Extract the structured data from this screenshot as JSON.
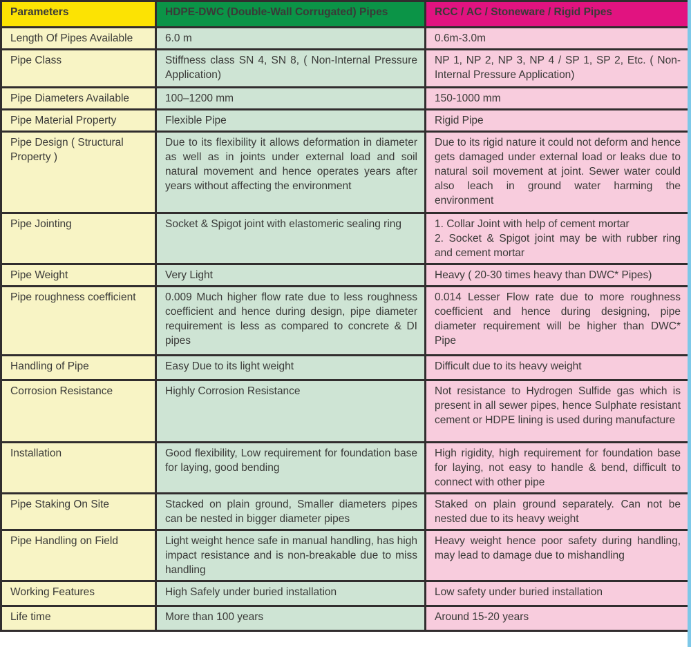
{
  "table": {
    "headers": [
      {
        "label": "Parameters"
      },
      {
        "label": "HDPE-DWC  (Double-Wall Corrugated) Pipes"
      },
      {
        "label": "RCC / AC / Stoneware / Rigid Pipes"
      }
    ],
    "rows": [
      {
        "param": "Length Of Pipes Available",
        "hdpe": "6.0 m",
        "rcc": "0.6m-3.0m"
      },
      {
        "param": "Pipe Class",
        "hdpe": "Stiffness class SN 4, SN 8, ( Non-Internal Pressure Application)",
        "rcc": "NP 1, NP 2, NP 3, NP 4 / SP 1, SP 2, Etc. ( Non-Internal Pressure Application)"
      },
      {
        "param": "Pipe Diameters Available",
        "hdpe": "100–1200 mm",
        "rcc": "150-1000 mm"
      },
      {
        "param": "Pipe Material Property",
        "hdpe": "Flexible Pipe",
        "rcc": "Rigid Pipe"
      },
      {
        "param": "Pipe Design ( Structural Property )",
        "hdpe": "Due to its flexibility it allows deformation in diameter as well as in joints under external load and soil natural movement and hence operates years after years without affecting the environment",
        "rcc": "Due to its rigid nature it could not deform and hence gets damaged under external load or leaks due to natural soil movement at joint. Sewer water could also leach in ground water harming the environment"
      },
      {
        "param": "Pipe Jointing",
        "hdpe": "Socket & Spigot joint with elastomeric sealing ring",
        "rcc": "1. Collar Joint with help of cement mortar\n2. Socket & Spigot joint may be with rubber ring and cement mortar"
      },
      {
        "param": "Pipe Weight",
        "hdpe": "Very Light",
        "rcc": "Heavy ( 20-30  times heavy than DWC* Pipes)"
      },
      {
        "param": "Pipe roughness coefficient",
        "hdpe": "0.009 Much higher flow rate due to less roughness coefficient and hence during design, pipe diameter requirement is less as compared to concrete & DI pipes",
        "rcc": "0.014 Lesser Flow rate due to more roughness coefficient and hence during designing, pipe diameter requirement will be higher than DWC* Pipe"
      },
      {
        "param": "Handling of Pipe",
        "hdpe": "Easy Due to its light weight",
        "rcc": "Difficult due to its heavy weight"
      },
      {
        "param": "Corrosion Resistance",
        "hdpe": "Highly Corrosion Resistance",
        "rcc": "Not resistance to Hydrogen Sulfide gas which is present in all sewer pipes, hence Sulphate resistant cement or HDPE lining is used during manufacture"
      },
      {
        "param": "Installation",
        "hdpe": "Good flexibility, Low requirement for foundation base for laying, good bending",
        "rcc": "High rigidity, high requirement for foundation base for laying, not easy to handle & bend, difficult to connect with other pipe"
      },
      {
        "param": "Pipe Staking On Site",
        "hdpe": "Stacked on plain ground, Smaller diameters pipes can be nested in bigger diameter pipes",
        "rcc": "Staked on plain ground separately. Can not be nested due to its heavy weight"
      },
      {
        "param": "Pipe Handling on Field",
        "hdpe": "Light weight hence safe in manual handling, has high impact resistance and is non-breakable due to miss handling",
        "rcc": "Heavy weight hence poor safety during handling, may lead to damage due to mishandling"
      },
      {
        "param": "Working Features",
        "hdpe": "High Safely under buried installation",
        "rcc": "Low safety under buried installation"
      },
      {
        "param": "Life time",
        "hdpe": "More than 100 years",
        "rcc": "Around 15-20 years"
      }
    ]
  },
  "colors": {
    "header_yellow": "#FCE303",
    "header_green": "#0B9447",
    "header_pink": "#E11380",
    "body_yellow": "#F8F4C5",
    "body_green": "#CEE4D4",
    "body_pink": "#F8CCDD",
    "border": "#312D2E",
    "side_strip_blue": "#7DC8E8"
  }
}
